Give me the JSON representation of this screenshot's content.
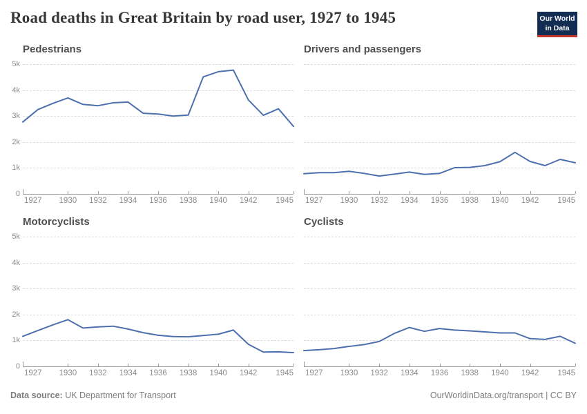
{
  "header": {
    "title": "Road deaths in Great Britain by road user, 1927 to 1945",
    "logo": {
      "line1": "Our World",
      "line2": "in Data"
    }
  },
  "footer": {
    "source_label": "Data source:",
    "source_value": "UK Department for Transport",
    "right": "OurWorldinData.org/transport | CC BY"
  },
  "colors": {
    "line": "#4d6fad",
    "grid": "#dcdcdc",
    "axis": "#999999",
    "tick_label": "#8c8c8c",
    "facet_title": "#4e4e4e",
    "title": "#383838",
    "footer": "#7d7d7d",
    "logo_bg": "#132c52",
    "logo_red": "#c7342c"
  },
  "chart_data": [
    {
      "type": "line",
      "title": "Pedestrians",
      "x": [
        1927,
        1928,
        1929,
        1930,
        1931,
        1932,
        1933,
        1934,
        1935,
        1936,
        1937,
        1938,
        1939,
        1940,
        1941,
        1942,
        1943,
        1944,
        1945
      ],
      "values": [
        2770,
        3250,
        3490,
        3700,
        3450,
        3400,
        3510,
        3540,
        3110,
        3080,
        3000,
        3040,
        4510,
        4710,
        4770,
        3620,
        3030,
        3280,
        2600
      ],
      "xlim": [
        1927,
        1945
      ],
      "ylim": [
        0,
        5000
      ],
      "x_tick_values": [
        1927,
        1930,
        1932,
        1934,
        1936,
        1938,
        1940,
        1942,
        1945
      ],
      "x_tick_labels": [
        "1927",
        "1930",
        "1932",
        "1934",
        "1936",
        "1938",
        "1940",
        "1942",
        "1945"
      ],
      "y_tick_values": [
        0,
        1000,
        2000,
        3000,
        4000,
        5000
      ],
      "y_tick_labels": [
        "0",
        "1k",
        "2k",
        "3k",
        "4k",
        "5k"
      ],
      "show_y_labels": true,
      "grid": true,
      "legend": "none"
    },
    {
      "type": "line",
      "title": "Drivers and passengers",
      "x": [
        1927,
        1928,
        1929,
        1930,
        1931,
        1932,
        1933,
        1934,
        1935,
        1936,
        1937,
        1938,
        1939,
        1940,
        1941,
        1942,
        1943,
        1944,
        1945
      ],
      "values": [
        780,
        820,
        820,
        870,
        790,
        690,
        760,
        840,
        750,
        790,
        1010,
        1020,
        1090,
        1240,
        1600,
        1250,
        1090,
        1330,
        1200
      ],
      "xlim": [
        1927,
        1945
      ],
      "ylim": [
        0,
        5000
      ],
      "x_tick_values": [
        1927,
        1930,
        1932,
        1934,
        1936,
        1938,
        1940,
        1942,
        1945
      ],
      "x_tick_labels": [
        "1927",
        "1930",
        "1932",
        "1934",
        "1936",
        "1938",
        "1940",
        "1942",
        "1945"
      ],
      "y_tick_values": [
        0,
        1000,
        2000,
        3000,
        4000,
        5000
      ],
      "y_tick_labels": [
        "0",
        "1k",
        "2k",
        "3k",
        "4k",
        "5k"
      ],
      "show_y_labels": false,
      "grid": true,
      "legend": "none"
    },
    {
      "type": "line",
      "title": "Motorcyclists",
      "x": [
        1927,
        1928,
        1929,
        1930,
        1931,
        1932,
        1933,
        1934,
        1935,
        1936,
        1937,
        1938,
        1939,
        1940,
        1941,
        1942,
        1943,
        1944,
        1945
      ],
      "values": [
        1160,
        1380,
        1600,
        1800,
        1480,
        1520,
        1550,
        1440,
        1300,
        1200,
        1150,
        1140,
        1190,
        1240,
        1400,
        850,
        550,
        560,
        530
      ],
      "xlim": [
        1927,
        1945
      ],
      "ylim": [
        0,
        5000
      ],
      "x_tick_values": [
        1927,
        1930,
        1932,
        1934,
        1936,
        1938,
        1940,
        1942,
        1945
      ],
      "x_tick_labels": [
        "1927",
        "1930",
        "1932",
        "1934",
        "1936",
        "1938",
        "1940",
        "1942",
        "1945"
      ],
      "y_tick_values": [
        0,
        1000,
        2000,
        3000,
        4000,
        5000
      ],
      "y_tick_labels": [
        "0",
        "1k",
        "2k",
        "3k",
        "4k",
        "5k"
      ],
      "show_y_labels": true,
      "grid": true,
      "legend": "none"
    },
    {
      "type": "line",
      "title": "Cyclists",
      "x": [
        1927,
        1928,
        1929,
        1930,
        1931,
        1932,
        1933,
        1934,
        1935,
        1936,
        1937,
        1938,
        1939,
        1940,
        1941,
        1942,
        1943,
        1944,
        1945
      ],
      "values": [
        610,
        640,
        690,
        770,
        840,
        960,
        1270,
        1500,
        1350,
        1460,
        1400,
        1370,
        1330,
        1290,
        1290,
        1070,
        1040,
        1160,
        890
      ],
      "xlim": [
        1927,
        1945
      ],
      "ylim": [
        0,
        5000
      ],
      "x_tick_values": [
        1927,
        1930,
        1932,
        1934,
        1936,
        1938,
        1940,
        1942,
        1945
      ],
      "x_tick_labels": [
        "1927",
        "1930",
        "1932",
        "1934",
        "1936",
        "1938",
        "1940",
        "1942",
        "1945"
      ],
      "y_tick_values": [
        0,
        1000,
        2000,
        3000,
        4000,
        5000
      ],
      "y_tick_labels": [
        "0",
        "1k",
        "2k",
        "3k",
        "4k",
        "5k"
      ],
      "show_y_labels": false,
      "grid": true,
      "legend": "none"
    }
  ]
}
